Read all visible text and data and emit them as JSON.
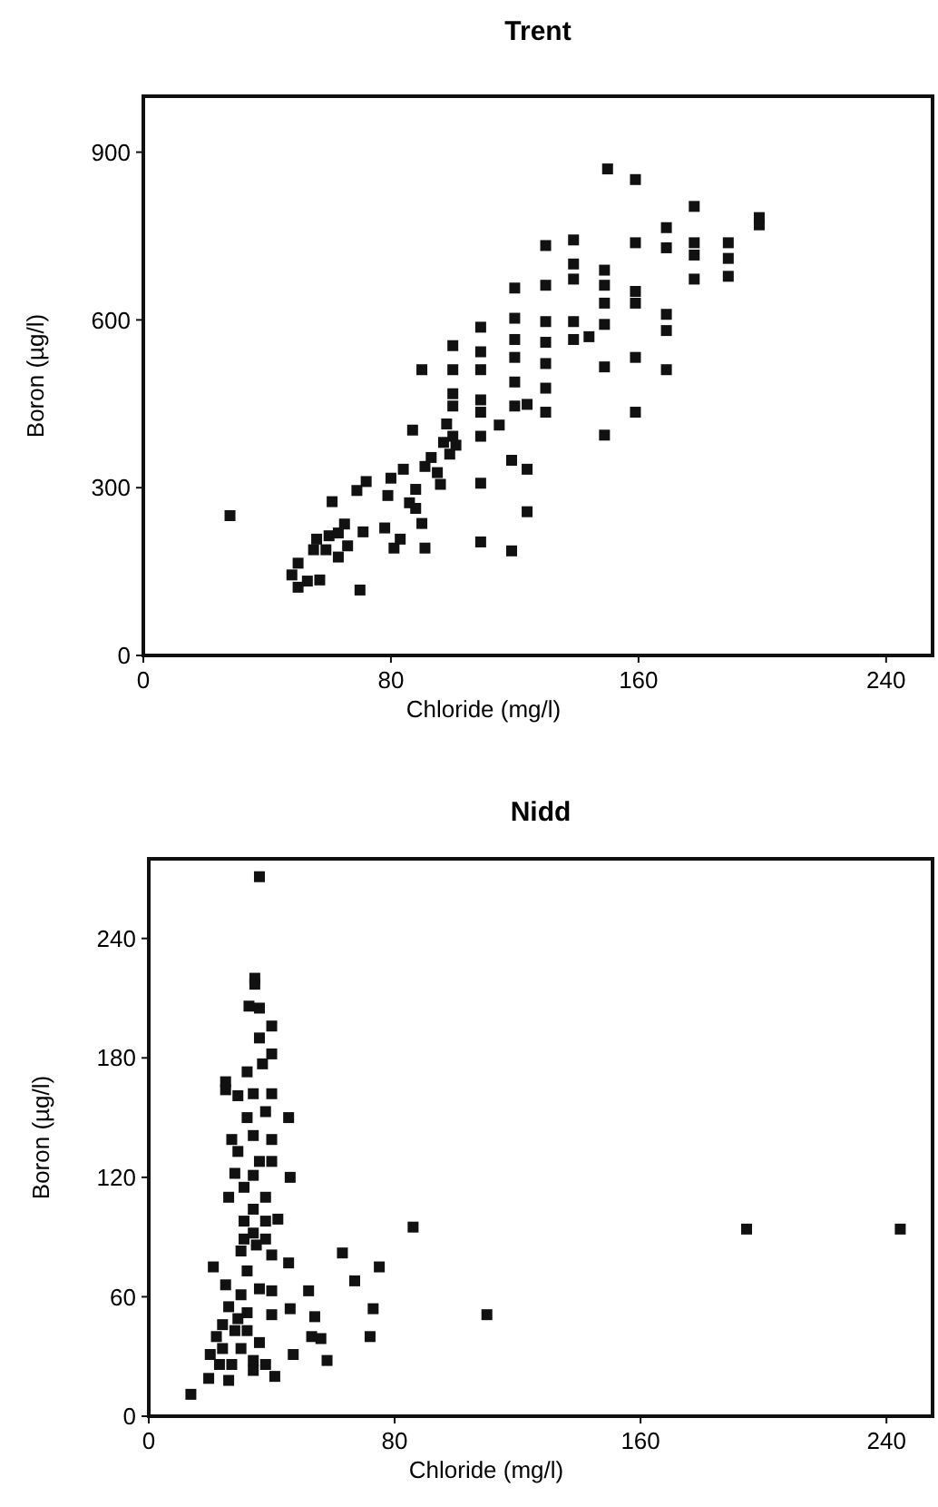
{
  "chart_data": [
    {
      "type": "scatter",
      "title": "Trent",
      "xlabel": "Chloride (mg/l)",
      "ylabel": "Boron (µg/l)",
      "xlim": [
        0,
        255
      ],
      "ylim": [
        0,
        1000
      ],
      "xticks": [
        0,
        80,
        160,
        240
      ],
      "yticks": [
        0,
        300,
        600,
        900
      ],
      "marker": "square",
      "series": [
        {
          "color": "#111111",
          "x": [
            28,
            48,
            50,
            50,
            53,
            57,
            55,
            56,
            59,
            61,
            60,
            63,
            63,
            65,
            66,
            70,
            69,
            72,
            71,
            78,
            80,
            79,
            81,
            83,
            84,
            87,
            88,
            90,
            91,
            90,
            86,
            88,
            91,
            93,
            95,
            96,
            97,
            98,
            99,
            100,
            100,
            100,
            100,
            100,
            101,
            109,
            109,
            109,
            109,
            109,
            109,
            109,
            109,
            115,
            119,
            119,
            120,
            120,
            120,
            120,
            120,
            120,
            124,
            124,
            124,
            130,
            130,
            130,
            130,
            130,
            130,
            130,
            139,
            139,
            139,
            139,
            139,
            144,
            149,
            149,
            149,
            149,
            149,
            149,
            150,
            159,
            159,
            159,
            159,
            159,
            159,
            169,
            169,
            169,
            169,
            169,
            178,
            178,
            178,
            178,
            189,
            189,
            189,
            199,
            199
          ],
          "values": [
            250,
            144,
            122,
            165,
            133,
            135,
            189,
            208,
            189,
            275,
            214,
            219,
            176,
            235,
            196,
            117,
            295,
            311,
            221,
            228,
            317,
            286,
            192,
            208,
            333,
            403,
            263,
            236,
            192,
            511,
            273,
            297,
            338,
            354,
            327,
            306,
            381,
            414,
            360,
            446,
            468,
            511,
            554,
            392,
            376,
            203,
            308,
            392,
            435,
            457,
            511,
            543,
            587,
            412,
            187,
            349,
            446,
            489,
            533,
            565,
            603,
            657,
            257,
            333,
            449,
            435,
            478,
            522,
            560,
            597,
            662,
            733,
            565,
            597,
            673,
            700,
            743,
            570,
            394,
            516,
            592,
            630,
            662,
            689,
            870,
            435,
            533,
            630,
            651,
            738,
            851,
            511,
            581,
            610,
            729,
            765,
            673,
            716,
            738,
            803,
            678,
            710,
            738,
            770,
            783
          ]
        }
      ]
    },
    {
      "type": "scatter",
      "title": "Nidd",
      "xlabel": "Chloride (mg/l)",
      "ylabel": "Boron (µg/l)",
      "xlim": [
        0,
        255
      ],
      "ylim": [
        0,
        280
      ],
      "xticks": [
        0,
        80,
        160,
        240
      ],
      "yticks": [
        0,
        60,
        120,
        180,
        240
      ],
      "marker": "square",
      "series": [
        {
          "color": "#111111",
          "x": [
            13.7,
            19.5,
            26,
            21,
            36,
            34.5,
            34.5,
            32.6,
            36,
            40,
            36,
            40,
            37,
            32,
            25,
            25,
            29,
            34,
            40,
            38,
            45.5,
            32,
            34,
            27,
            40,
            29,
            36,
            40,
            46,
            28,
            34,
            31,
            26,
            38,
            34,
            42,
            38,
            31,
            34,
            38,
            31,
            35,
            40,
            30,
            32,
            45.5,
            63,
            67,
            75,
            86,
            194.5,
            244.5,
            110,
            73,
            72,
            54,
            52,
            53,
            56,
            58,
            47,
            46,
            40,
            40,
            36,
            30,
            25,
            32,
            26,
            24,
            28,
            22,
            24,
            20,
            30,
            36,
            34,
            38,
            41,
            34,
            27,
            23,
            29,
            32
          ],
          "values": [
            11,
            19,
            18,
            75,
            271,
            220,
            217,
            206,
            205,
            196,
            190,
            182,
            177,
            173,
            168,
            164,
            161,
            162,
            162,
            153,
            150,
            150,
            141,
            139,
            139,
            133,
            128,
            128,
            120,
            122,
            121,
            115,
            110,
            110,
            104,
            99,
            98,
            98,
            92,
            89,
            89,
            86,
            81,
            83,
            73,
            77,
            82,
            68,
            75,
            95,
            94,
            94,
            51,
            54,
            40,
            50,
            63,
            40,
            39,
            28,
            31,
            54,
            51,
            63,
            64,
            61,
            66,
            52,
            55,
            46,
            43,
            40,
            34,
            31,
            34,
            37,
            28,
            26,
            20,
            23,
            26,
            26,
            49,
            43
          ]
        }
      ]
    }
  ]
}
